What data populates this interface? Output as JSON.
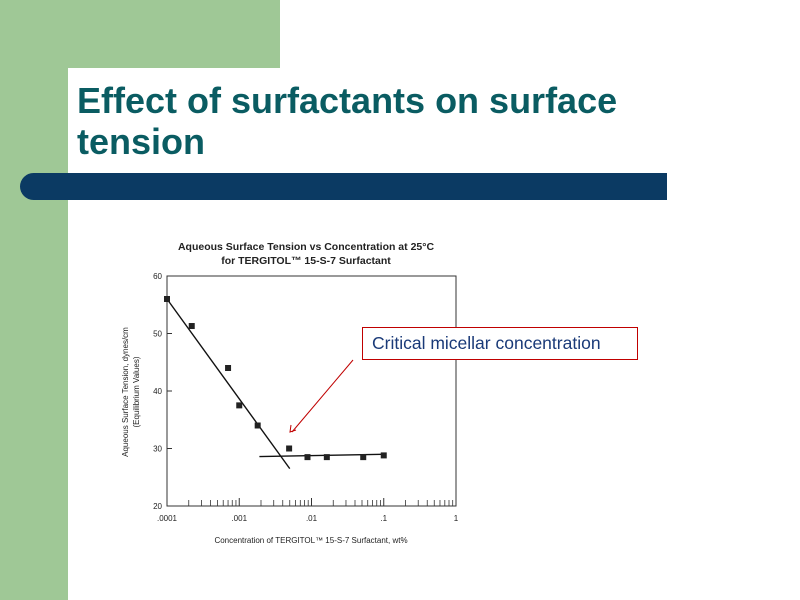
{
  "slide": {
    "title": "Effect of surfactants on surface tension",
    "colors": {
      "title": "#0a5c62",
      "bar": "#0b3a63",
      "band": "#9fc896",
      "callout_border": "#c00000",
      "callout_text": "#1a3a78"
    }
  },
  "callout": {
    "text": "Critical micellar concentration"
  },
  "chart_data": {
    "type": "scatter",
    "title": "Aqueous Surface Tension vs Concentration at 25°C",
    "subtitle": "for TERGITOL™ 15-S-7 Surfactant",
    "xlabel": "Concentration of TERGITOL™ 15-S-7 Surfactant, wt%",
    "ylabel": "Aqueous Surface Tension, dynes/cm",
    "ylabel2": "(Equilibrium Values)",
    "xscale": "log",
    "xlim": [
      0.0001,
      1
    ],
    "ylim": [
      20,
      60
    ],
    "xticks": [
      ".0001",
      ".001",
      ".01",
      ".1",
      "1"
    ],
    "yticks": [
      "20",
      "30",
      "40",
      "50",
      "60"
    ],
    "grid": false,
    "series": [
      {
        "points": [
          [
            0.0001,
            56
          ],
          [
            0.00022,
            51.3
          ],
          [
            0.0007,
            44
          ],
          [
            0.001,
            37.5
          ],
          [
            0.0018,
            34
          ],
          [
            0.0049,
            30
          ],
          [
            0.0088,
            28.5
          ],
          [
            0.0163,
            28.5
          ],
          [
            0.052,
            28.5
          ],
          [
            0.1,
            28.8
          ]
        ]
      }
    ],
    "fit_lines": [
      {
        "from": [
          0.0001,
          56
        ],
        "to": [
          0.005,
          26.5
        ]
      },
      {
        "from": [
          0.0019,
          28.6
        ],
        "to": [
          0.1,
          29
        ]
      }
    ]
  }
}
